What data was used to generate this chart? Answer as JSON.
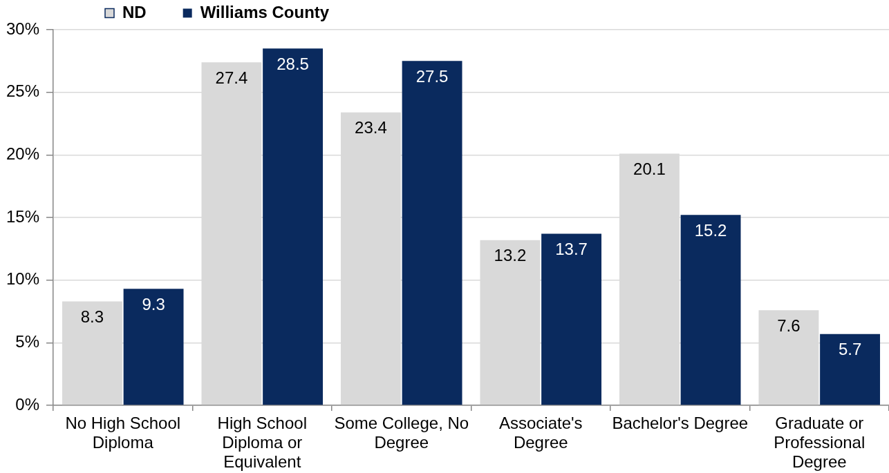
{
  "chart_data": {
    "type": "bar",
    "categories": [
      "No High School Diploma",
      "High School Diploma or Equivalent",
      "Some College, No Degree",
      "Associate's Degree",
      "Bachelor's Degree",
      "Graduate or Professional Degree"
    ],
    "series": [
      {
        "name": "ND",
        "color": "#d9d9d9",
        "values": [
          8.3,
          27.4,
          23.4,
          13.2,
          20.1,
          7.6
        ]
      },
      {
        "name": "Williams County",
        "color": "#0a2a5e",
        "values": [
          9.3,
          28.5,
          27.5,
          13.7,
          15.2,
          5.7
        ]
      }
    ],
    "ylim": [
      0,
      30
    ],
    "yticks": [
      {
        "value": 0,
        "label": "0%"
      },
      {
        "value": 5,
        "label": "5%"
      },
      {
        "value": 10,
        "label": "10%"
      },
      {
        "value": 15,
        "label": "15%"
      },
      {
        "value": 20,
        "label": "20%"
      },
      {
        "value": 25,
        "label": "25%"
      },
      {
        "value": 30,
        "label": "30%"
      }
    ],
    "grid": "y",
    "legend": "top left",
    "data_labels": true
  }
}
